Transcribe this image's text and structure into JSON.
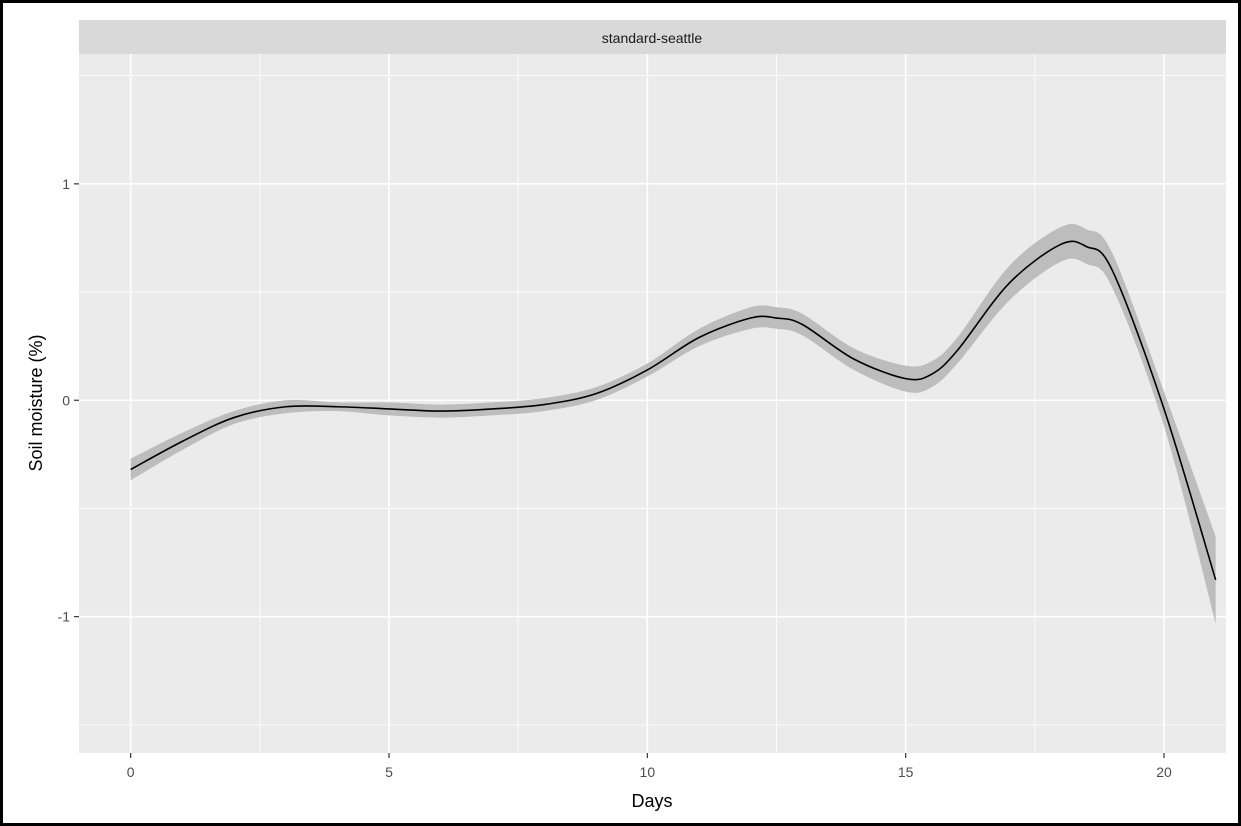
{
  "chart_data": {
    "type": "line",
    "facet_label": "standard-seattle",
    "xlabel": "Days",
    "ylabel": "Soil moisture (%)",
    "xlim": [
      -1,
      21.2
    ],
    "ylim": [
      -1.63,
      1.6
    ],
    "x_ticks": [
      0,
      5,
      10,
      15,
      20
    ],
    "x_tick_labels": [
      "0",
      "5",
      "10",
      "15",
      "20"
    ],
    "y_ticks": [
      -1,
      0,
      1
    ],
    "y_tick_labels": [
      "-1",
      "0",
      "1"
    ],
    "x_minor": [
      2.5,
      7.5,
      12.5,
      17.5
    ],
    "y_minor": [
      -1.5,
      -0.5,
      0.5,
      1.5
    ],
    "grid": true,
    "colors": {
      "panel_bg": "#ebebeb",
      "strip_bg": "#d9d9d9",
      "grid": "#ffffff",
      "line": "#000000",
      "ribbon": "#bdbdbd"
    },
    "series": [
      {
        "x": [
          0,
          1,
          2,
          3,
          4,
          5,
          6,
          7,
          8,
          9,
          10,
          11,
          12,
          12.5,
          13,
          14,
          15,
          15.5,
          16,
          17,
          18,
          18.5,
          19,
          20,
          21
        ],
        "y": [
          -0.32,
          -0.19,
          -0.08,
          -0.03,
          -0.03,
          -0.04,
          -0.05,
          -0.04,
          -0.02,
          0.03,
          0.14,
          0.29,
          0.38,
          0.38,
          0.35,
          0.19,
          0.1,
          0.12,
          0.23,
          0.54,
          0.72,
          0.71,
          0.6,
          -0.04,
          -0.83
        ],
        "lower": [
          -0.37,
          -0.23,
          -0.11,
          -0.06,
          -0.05,
          -0.07,
          -0.08,
          -0.07,
          -0.05,
          0.0,
          0.11,
          0.25,
          0.33,
          0.33,
          0.3,
          0.14,
          0.04,
          0.06,
          0.17,
          0.46,
          0.64,
          0.63,
          0.52,
          -0.12,
          -1.03
        ],
        "upper": [
          -0.27,
          -0.15,
          -0.05,
          0.0,
          -0.01,
          -0.01,
          -0.02,
          -0.01,
          0.01,
          0.06,
          0.17,
          0.33,
          0.43,
          0.43,
          0.4,
          0.24,
          0.16,
          0.18,
          0.29,
          0.62,
          0.8,
          0.79,
          0.68,
          0.04,
          -0.63
        ]
      }
    ]
  }
}
